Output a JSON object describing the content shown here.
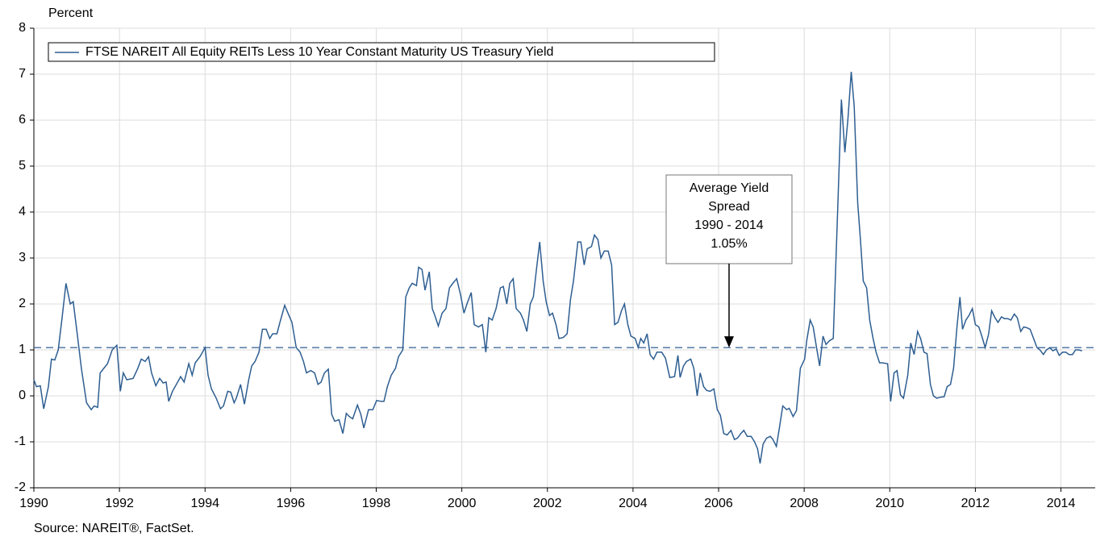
{
  "chart_data": {
    "type": "line",
    "y_label": "Percent",
    "source": "Source: NAREIT®, FactSet.",
    "xlim": [
      1990,
      2014.8
    ],
    "xticks": [
      1990,
      1992,
      1994,
      1996,
      1998,
      2000,
      2002,
      2004,
      2006,
      2008,
      2010,
      2012,
      2014
    ],
    "ylim": [
      -2,
      8
    ],
    "yticks": [
      -2,
      -1,
      0,
      1,
      2,
      3,
      4,
      5,
      6,
      7,
      8
    ],
    "grid": true,
    "legend": "top-left",
    "annotation": {
      "lines": [
        "Average Yield",
        "Spread",
        "1990 - 2014"
      ],
      "value": 1.05,
      "label": "1.05%"
    },
    "series": [
      {
        "name": "FTSE NAREIT All Equity REITs Less 10 Year Constant Maturity US Treasury Yield",
        "color": "#2e5e91",
        "x": [
          1990,
          1990.06,
          1990.15,
          1990.23,
          1990.34,
          1990.41,
          1990.49,
          1990.57,
          1990.66,
          1990.75,
          1990.85,
          1990.92,
          1991.02,
          1991.11,
          1991.23,
          1991.34,
          1991.41,
          1991.49,
          1991.55,
          1991.72,
          1991.83,
          1991.94,
          1992.02,
          1992.09,
          1992.17,
          1992.32,
          1992.43,
          1992.51,
          1992.6,
          1992.68,
          1992.75,
          1992.85,
          1992.94,
          1993.02,
          1993.09,
          1993.15,
          1993.24,
          1993.36,
          1993.43,
          1993.51,
          1993.62,
          1993.7,
          1993.77,
          1993.88,
          1994,
          1994.07,
          1994.15,
          1994.26,
          1994.36,
          1994.43,
          1994.53,
          1994.6,
          1994.68,
          1994.73,
          1994.83,
          1994.92,
          1995.02,
          1995.09,
          1995.17,
          1995.26,
          1995.34,
          1995.43,
          1995.51,
          1995.58,
          1995.68,
          1995.75,
          1995.86,
          1995.96,
          1996.03,
          1996.13,
          1996.22,
          1996.3,
          1996.37,
          1996.47,
          1996.56,
          1996.64,
          1996.71,
          1996.79,
          1996.88,
          1996.96,
          1997.03,
          1997.13,
          1997.22,
          1997.3,
          1997.37,
          1997.45,
          1997.56,
          1997.64,
          1997.71,
          1997.82,
          1997.92,
          1998.01,
          1998.11,
          1998.18,
          1998.26,
          1998.35,
          1998.45,
          1998.52,
          1998.62,
          1998.69,
          1998.77,
          1998.84,
          1998.94,
          1998.99,
          1999.07,
          1999.14,
          1999.24,
          1999.31,
          1999.37,
          1999.45,
          1999.54,
          1999.63,
          1999.71,
          1999.79,
          1999.88,
          1999.97,
          2000.05,
          2000.12,
          2000.22,
          2000.29,
          2000.39,
          2000.48,
          2000.56,
          2000.63,
          2000.71,
          2000.8,
          2000.9,
          2000.97,
          2001.05,
          2001.12,
          2001.2,
          2001.27,
          2001.37,
          2001.44,
          2001.52,
          2001.6,
          2001.67,
          2001.75,
          2001.82,
          2001.9,
          2001.97,
          2002.05,
          2002.12,
          2002.2,
          2002.27,
          2002.37,
          2002.46,
          2002.54,
          2002.61,
          2002.71,
          2002.78,
          2002.86,
          2002.93,
          2003.03,
          2003.1,
          2003.18,
          2003.25,
          2003.33,
          2003.42,
          2003.5,
          2003.57,
          2003.65,
          2003.73,
          2003.8,
          2003.88,
          2003.95,
          2004.05,
          2004.12,
          2004.18,
          2004.25,
          2004.33,
          2004.4,
          2004.48,
          2004.56,
          2004.67,
          2004.76,
          2004.86,
          2004.97,
          2005.05,
          2005.1,
          2005.18,
          2005.25,
          2005.35,
          2005.42,
          2005.5,
          2005.57,
          2005.65,
          2005.72,
          2005.8,
          2005.89,
          2005.97,
          2006.04,
          2006.12,
          2006.2,
          2006.29,
          2006.37,
          2006.44,
          2006.52,
          2006.59,
          2006.67,
          2006.76,
          2006.84,
          2006.91,
          2006.97,
          2007.04,
          2007.12,
          2007.21,
          2007.27,
          2007.35,
          2007.42,
          2007.5,
          2007.59,
          2007.65,
          2007.74,
          2007.82,
          2007.91,
          2008.01,
          2008.06,
          2008.14,
          2008.21,
          2008.29,
          2008.36,
          2008.44,
          2008.51,
          2008.59,
          2008.68,
          2008.78,
          2008.87,
          2008.95,
          2009.02,
          2009.1,
          2009.17,
          2009.25,
          2009.31,
          2009.38,
          2009.46,
          2009.53,
          2009.61,
          2009.68,
          2009.76,
          2009.83,
          2009.95,
          2010.02,
          2010.1,
          2010.17,
          2010.25,
          2010.32,
          2010.42,
          2010.49,
          2010.57,
          2010.65,
          2010.72,
          2010.8,
          2010.87,
          2010.95,
          2011.02,
          2011.1,
          2011.17,
          2011.27,
          2011.34,
          2011.42,
          2011.49,
          2011.57,
          2011.64,
          2011.7,
          2011.78,
          2011.85,
          2011.93,
          2012,
          2012.08,
          2012.15,
          2012.23,
          2012.31,
          2012.38,
          2012.46,
          2012.53,
          2012.61,
          2012.68,
          2012.76,
          2012.83,
          2012.91,
          2012.98,
          2013.06,
          2013.13,
          2013.21,
          2013.28,
          2013.36,
          2013.44,
          2013.51,
          2013.59,
          2013.66,
          2013.74,
          2013.81,
          2013.89,
          2013.96,
          2014.04,
          2014.11,
          2014.19,
          2014.27,
          2014.34,
          2014.42,
          2014.49
        ],
        "values": [
          0.35,
          0.2,
          0.22,
          -0.28,
          0.2,
          0.8,
          0.78,
          1.0,
          1.7,
          2.45,
          2.0,
          2.05,
          1.3,
          0.6,
          -0.15,
          -0.3,
          -0.22,
          -0.25,
          0.5,
          0.7,
          1.0,
          1.1,
          0.1,
          0.5,
          0.35,
          0.38,
          0.6,
          0.8,
          0.75,
          0.85,
          0.5,
          0.22,
          0.38,
          0.28,
          0.3,
          -0.12,
          0.1,
          0.3,
          0.42,
          0.3,
          0.7,
          0.45,
          0.72,
          0.85,
          1.05,
          0.45,
          0.15,
          -0.05,
          -0.28,
          -0.22,
          0.1,
          0.08,
          -0.15,
          -0.05,
          0.25,
          -0.18,
          0.35,
          0.65,
          0.75,
          0.95,
          1.45,
          1.45,
          1.25,
          1.35,
          1.35,
          1.6,
          1.97,
          1.75,
          1.6,
          1.05,
          0.95,
          0.75,
          0.5,
          0.55,
          0.5,
          0.25,
          0.3,
          0.5,
          0.58,
          -0.4,
          -0.55,
          -0.52,
          -0.82,
          -0.38,
          -0.45,
          -0.5,
          -0.2,
          -0.4,
          -0.7,
          -0.3,
          -0.3,
          -0.1,
          -0.12,
          -0.12,
          0.2,
          0.45,
          0.6,
          0.85,
          1.0,
          2.15,
          2.35,
          2.45,
          2.4,
          2.8,
          2.75,
          2.3,
          2.7,
          1.9,
          1.75,
          1.52,
          1.8,
          1.9,
          2.35,
          2.45,
          2.55,
          2.2,
          1.8,
          2.0,
          2.25,
          1.55,
          1.5,
          1.55,
          0.95,
          1.7,
          1.65,
          1.9,
          2.35,
          2.38,
          2.0,
          2.45,
          2.55,
          1.9,
          1.8,
          1.65,
          1.4,
          2.0,
          2.15,
          2.8,
          3.35,
          2.5,
          2.05,
          1.75,
          1.8,
          1.55,
          1.25,
          1.27,
          1.35,
          2.1,
          2.5,
          3.35,
          3.35,
          2.85,
          3.2,
          3.25,
          3.5,
          3.4,
          3.0,
          3.15,
          3.15,
          2.85,
          1.55,
          1.6,
          1.85,
          2.0,
          1.55,
          1.3,
          1.25,
          1.05,
          1.25,
          1.15,
          1.35,
          0.9,
          0.8,
          0.95,
          0.95,
          0.82,
          0.4,
          0.42,
          0.88,
          0.4,
          0.65,
          0.75,
          0.8,
          0.6,
          0.0,
          0.5,
          0.2,
          0.12,
          0.1,
          0.15,
          -0.3,
          -0.42,
          -0.82,
          -0.85,
          -0.75,
          -0.95,
          -0.92,
          -0.82,
          -0.75,
          -0.88,
          -0.88,
          -1.0,
          -1.15,
          -1.47,
          -1.05,
          -0.92,
          -0.88,
          -0.95,
          -1.1,
          -0.7,
          -0.22,
          -0.3,
          -0.27,
          -0.45,
          -0.32,
          0.6,
          0.8,
          1.2,
          1.65,
          1.5,
          1.05,
          0.65,
          1.3,
          1.12,
          1.2,
          1.25,
          4.0,
          6.45,
          5.3,
          6.0,
          7.05,
          6.3,
          4.2,
          3.45,
          2.5,
          2.35,
          1.65,
          1.25,
          0.95,
          0.72,
          0.72,
          0.7,
          -0.12,
          0.5,
          0.55,
          0.02,
          -0.05,
          0.45,
          1.15,
          0.9,
          1.4,
          1.25,
          0.95,
          0.92,
          0.25,
          0.0,
          -0.05,
          -0.03,
          -0.02,
          0.2,
          0.25,
          0.6,
          1.5,
          2.15,
          1.45,
          1.65,
          1.75,
          1.9,
          1.55,
          1.5,
          1.3,
          1.05,
          1.35,
          1.85,
          1.7,
          1.6,
          1.72,
          1.68,
          1.68,
          1.65,
          1.78,
          1.7,
          1.4,
          1.5,
          1.48,
          1.45,
          1.25,
          1.05,
          1.0,
          0.9,
          1.0,
          1.05,
          0.98,
          1.02,
          0.88,
          0.95,
          0.95,
          0.9,
          0.9,
          1.0,
          1.0,
          0.98
        ]
      }
    ]
  }
}
